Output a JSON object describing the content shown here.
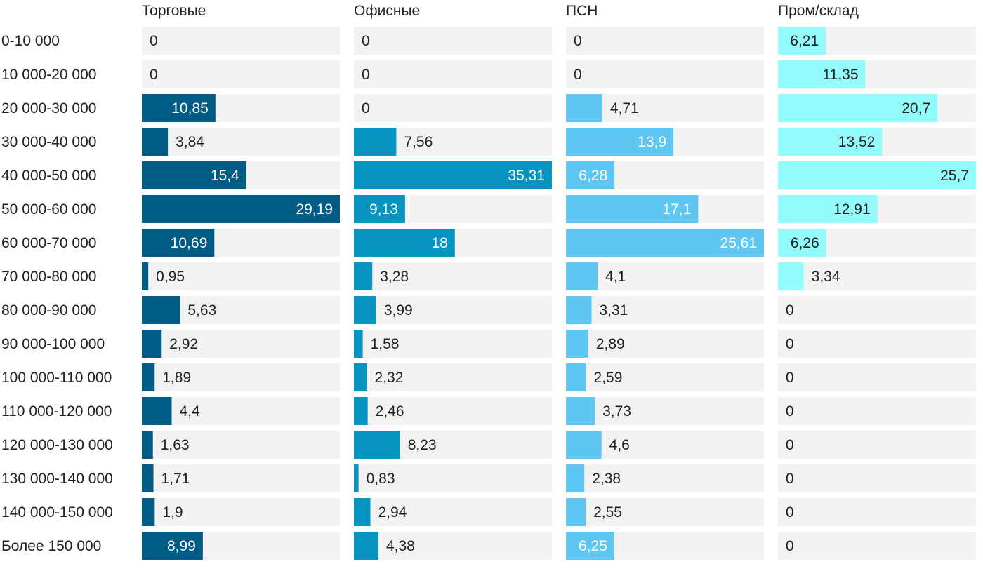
{
  "chart_data": {
    "type": "bar",
    "orientation": "horizontal",
    "layout": "small-multiples",
    "categories": [
      "0-10 000",
      "10 000-20 000",
      "20 000-30 000",
      "30 000-40 000",
      "40 000-50 000",
      "50 000-60 000",
      "60 000-70 000",
      "70 000-80 000",
      "80 000-90 000",
      "90 000-100 000",
      "100 000-110 000",
      "110 000-120 000",
      "120 000-130 000",
      "130 000-140 000",
      "140 000-150 000",
      "Более 150 000"
    ],
    "series": [
      {
        "name": "Торговые",
        "color": "#005b85",
        "value_labels": [
          "0",
          "0",
          "10,85",
          "3,84",
          "15,4",
          "29,19",
          "10,69",
          "0,95",
          "5,63",
          "2,92",
          "1,89",
          "4,4",
          "1,63",
          "1,71",
          "1,9",
          "8,99"
        ],
        "values": [
          0,
          0,
          10.85,
          3.84,
          15.4,
          29.19,
          10.69,
          0.95,
          5.63,
          2.92,
          1.89,
          4.4,
          1.63,
          1.71,
          1.9,
          8.99
        ]
      },
      {
        "name": "Офисные",
        "color": "#0794c0",
        "value_labels": [
          "0",
          "0",
          "0",
          "7,56",
          "35,31",
          "9,13",
          "18",
          "3,28",
          "3,99",
          "1,58",
          "2,32",
          "2,46",
          "8,23",
          "0,83",
          "2,94",
          "4,38"
        ],
        "values": [
          0,
          0,
          0,
          7.56,
          35.31,
          9.13,
          18,
          3.28,
          3.99,
          1.58,
          2.32,
          2.46,
          8.23,
          0.83,
          2.94,
          4.38
        ]
      },
      {
        "name": "ПСН",
        "color": "#5fc6f2",
        "value_labels": [
          "0",
          "0",
          "4,71",
          "13,9",
          "6,28",
          "17,1",
          "25,61",
          "4,1",
          "3,31",
          "2,89",
          "2,59",
          "3,73",
          "4,6",
          "2,38",
          "2,55",
          "6,25"
        ],
        "values": [
          0,
          0,
          4.71,
          13.9,
          6.28,
          17.1,
          25.61,
          4.1,
          3.31,
          2.89,
          2.59,
          3.73,
          4.6,
          2.38,
          2.55,
          6.25
        ]
      },
      {
        "name": "Пром/склад",
        "color": "#94fbfd",
        "value_labels": [
          "6,21",
          "11,35",
          "20,7",
          "13,52",
          "25,7",
          "12,91",
          "6,26",
          "3,34",
          "0",
          "0",
          "0",
          "0",
          "0",
          "0",
          "0",
          "0"
        ],
        "values": [
          6.21,
          11.35,
          20.7,
          13.52,
          25.7,
          12.91,
          6.26,
          3.34,
          0,
          0,
          0,
          0,
          0,
          0,
          0,
          0
        ]
      }
    ],
    "track_color": "#f2f2f2",
    "label_dark_text": "#222222",
    "label_light_text": "#ffffff",
    "xlim_note": "each panel scaled to its own maximum"
  }
}
